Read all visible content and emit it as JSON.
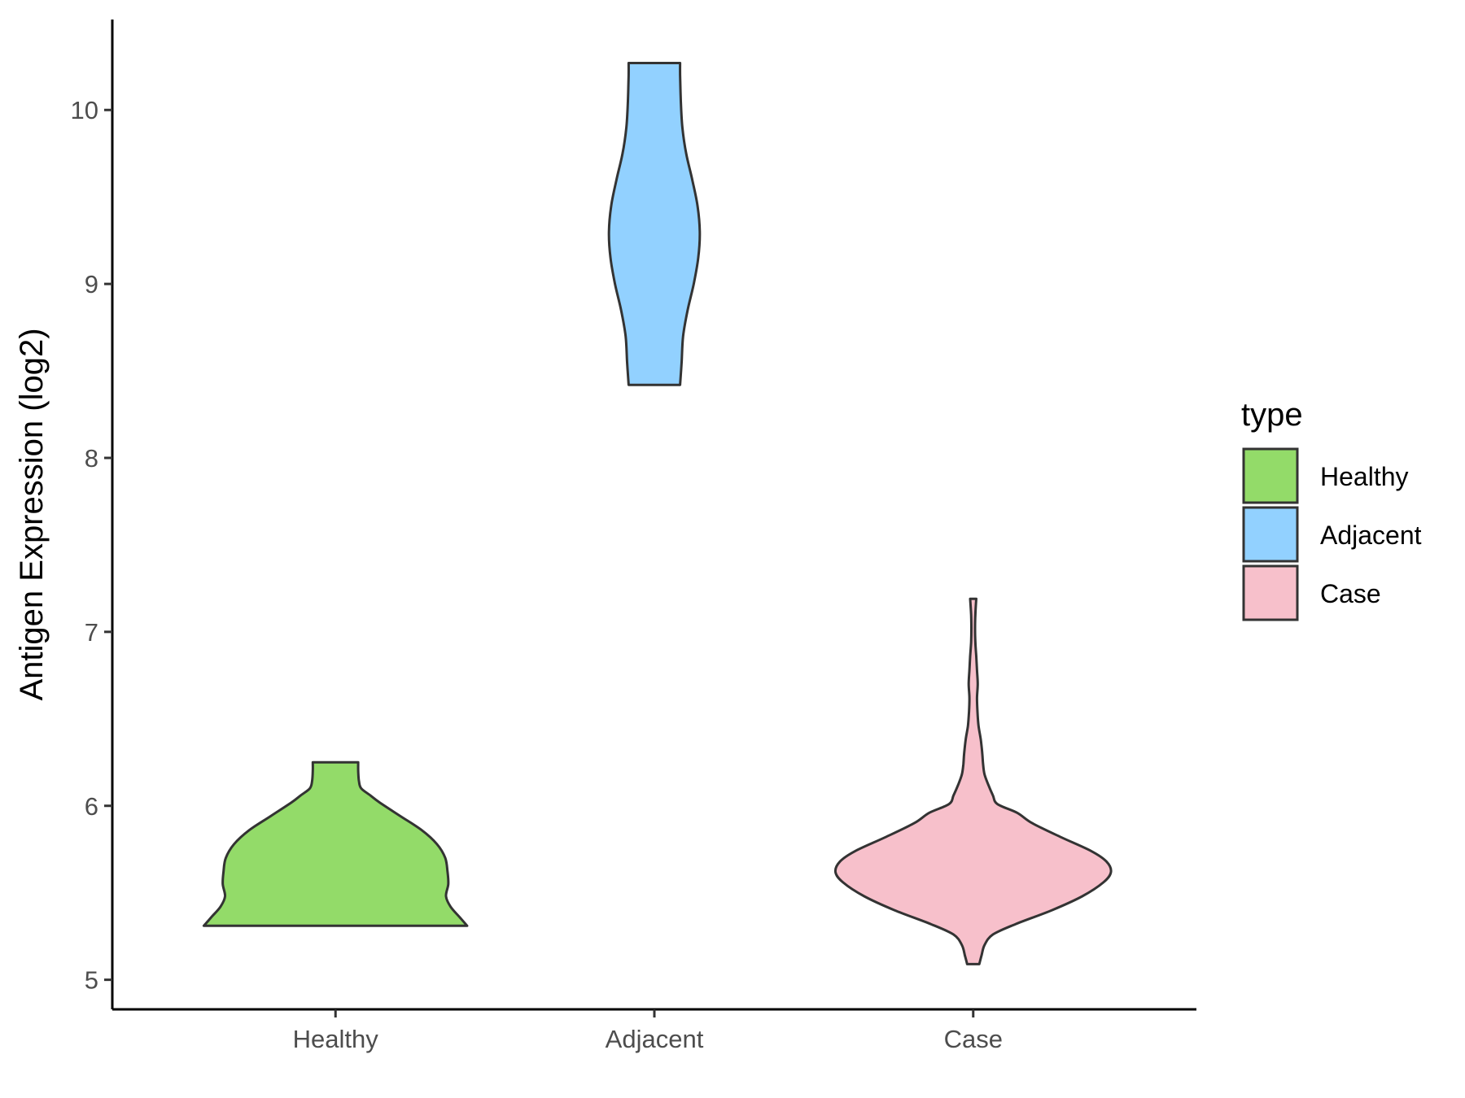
{
  "chart_data": {
    "type": "violin",
    "ylabel": "Antigen Expression (log2)",
    "xlabel": "",
    "ylim": [
      4.83,
      10.52
    ],
    "yticks": [
      5,
      6,
      7,
      8,
      9,
      10
    ],
    "categories": [
      "Healthy",
      "Adjacent",
      "Case"
    ],
    "grid": false,
    "legend": {
      "title": "type",
      "placement": "right",
      "entries": [
        {
          "label": "Healthy",
          "color": "#93DB69"
        },
        {
          "label": "Adjacent",
          "color": "#92D1FF"
        },
        {
          "label": "Case",
          "color": "#F7C0CB"
        }
      ]
    },
    "series": [
      {
        "category": "Healthy",
        "color": "#93DB69",
        "min": 5.31,
        "max": 6.25,
        "density": [
          [
            5.31,
            0.87
          ],
          [
            5.36,
            0.82
          ],
          [
            5.42,
            0.76
          ],
          [
            5.48,
            0.73
          ],
          [
            5.55,
            0.745
          ],
          [
            5.62,
            0.74
          ],
          [
            5.7,
            0.725
          ],
          [
            5.78,
            0.67
          ],
          [
            5.86,
            0.57
          ],
          [
            5.94,
            0.43
          ],
          [
            6.02,
            0.29
          ],
          [
            6.06,
            0.23
          ],
          [
            6.1,
            0.17
          ],
          [
            6.14,
            0.155
          ],
          [
            6.2,
            0.15
          ],
          [
            6.25,
            0.15
          ]
        ]
      },
      {
        "category": "Adjacent",
        "color": "#92D1FF",
        "min": 8.42,
        "max": 10.27,
        "density": [
          [
            8.42,
            0.17
          ],
          [
            8.55,
            0.18
          ],
          [
            8.7,
            0.19
          ],
          [
            8.85,
            0.22
          ],
          [
            9.0,
            0.26
          ],
          [
            9.15,
            0.29
          ],
          [
            9.3,
            0.3
          ],
          [
            9.45,
            0.285
          ],
          [
            9.6,
            0.25
          ],
          [
            9.75,
            0.21
          ],
          [
            9.9,
            0.185
          ],
          [
            10.05,
            0.175
          ],
          [
            10.2,
            0.17
          ],
          [
            10.27,
            0.17
          ]
        ]
      },
      {
        "category": "Case",
        "color": "#F7C0CB",
        "min": 5.09,
        "max": 7.19,
        "density": [
          [
            5.09,
            0.04
          ],
          [
            5.14,
            0.055
          ],
          [
            5.2,
            0.075
          ],
          [
            5.26,
            0.13
          ],
          [
            5.32,
            0.28
          ],
          [
            5.4,
            0.52
          ],
          [
            5.48,
            0.72
          ],
          [
            5.56,
            0.86
          ],
          [
            5.62,
            0.91
          ],
          [
            5.68,
            0.88
          ],
          [
            5.74,
            0.78
          ],
          [
            5.82,
            0.58
          ],
          [
            5.9,
            0.39
          ],
          [
            5.96,
            0.29
          ],
          [
            6.01,
            0.16
          ],
          [
            6.06,
            0.13
          ],
          [
            6.12,
            0.1
          ],
          [
            6.18,
            0.075
          ],
          [
            6.24,
            0.065
          ],
          [
            6.3,
            0.06
          ],
          [
            6.38,
            0.05
          ],
          [
            6.46,
            0.035
          ],
          [
            6.54,
            0.028
          ],
          [
            6.62,
            0.025
          ],
          [
            6.7,
            0.03
          ],
          [
            6.78,
            0.025
          ],
          [
            6.86,
            0.02
          ],
          [
            6.94,
            0.014
          ],
          [
            7.02,
            0.012
          ],
          [
            7.1,
            0.014
          ],
          [
            7.19,
            0.02
          ]
        ]
      }
    ]
  }
}
